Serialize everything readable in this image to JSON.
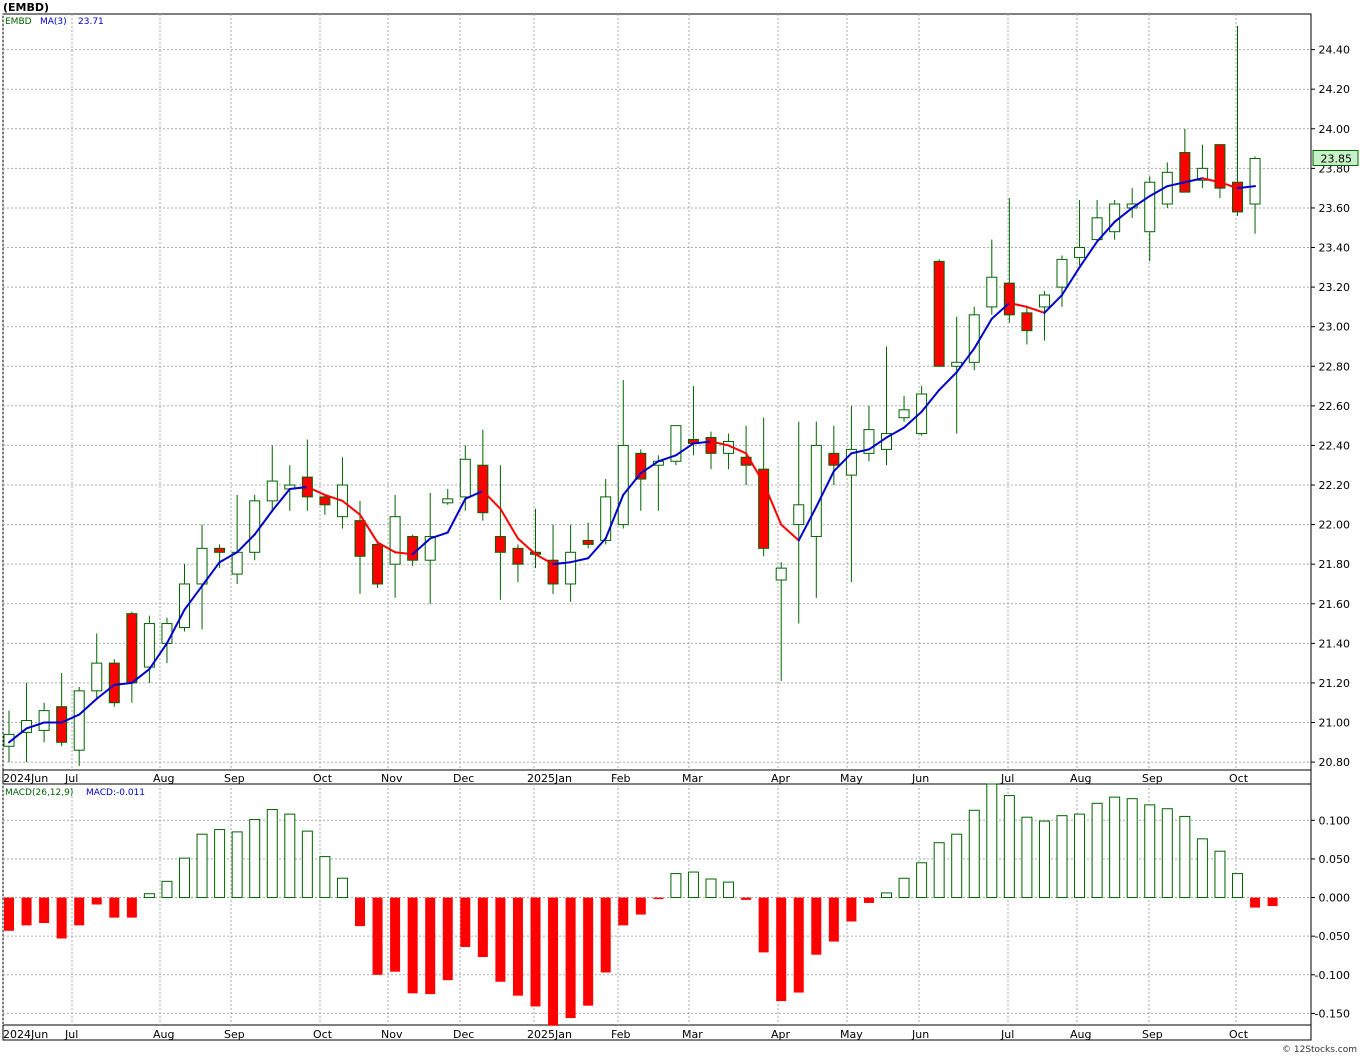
{
  "chart_data": [
    {
      "type": "candlestick",
      "title": "(EMBD)",
      "symbol_label": "EMBD",
      "ma_label": "MA(3)",
      "ma_value": "23.71",
      "last_price": "23.85",
      "ylim": [
        20.76,
        24.58
      ],
      "y_ticks": [
        "20.80",
        "21.00",
        "21.20",
        "21.40",
        "21.60",
        "21.80",
        "22.00",
        "22.20",
        "22.40",
        "22.60",
        "22.80",
        "23.00",
        "23.20",
        "23.40",
        "23.60",
        "23.80",
        "24.00",
        "24.20",
        "24.40"
      ],
      "x_ticks": [
        "2024Jun",
        "Jul",
        "Aug",
        "Sep",
        "Oct",
        "Nov",
        "Dec",
        "2025Jan",
        "Feb",
        "Mar",
        "Apr",
        "May",
        "Jun",
        "Jul",
        "Aug",
        "Sep",
        "Oct"
      ],
      "grid": true,
      "colors": {
        "up_fill": "#ffffff",
        "up_line": "#006400",
        "down_fill": "#ff0000",
        "wick": "#006400",
        "ma_up": "#0000cc",
        "ma_down": "#ff0000",
        "last_bg": "#c8f0c8"
      },
      "candles": [
        [
          20.88,
          20.94,
          21.06,
          20.8
        ],
        [
          20.95,
          21.01,
          21.2,
          20.8
        ],
        [
          20.96,
          21.06,
          21.1,
          20.9
        ],
        [
          21.08,
          20.9,
          21.25,
          20.88
        ],
        [
          20.86,
          21.16,
          21.18,
          20.78
        ],
        [
          21.16,
          21.3,
          21.45,
          21.12
        ],
        [
          21.3,
          21.1,
          21.32,
          21.08
        ],
        [
          21.55,
          21.2,
          21.56,
          21.1
        ],
        [
          21.28,
          21.5,
          21.54,
          21.2
        ],
        [
          21.4,
          21.5,
          21.53,
          21.3
        ],
        [
          21.48,
          21.7,
          21.8,
          21.46
        ],
        [
          21.7,
          21.88,
          22.0,
          21.47
        ],
        [
          21.88,
          21.86,
          21.9,
          21.78
        ],
        [
          21.75,
          21.86,
          22.15,
          21.7
        ],
        [
          21.86,
          22.12,
          22.15,
          21.82
        ],
        [
          22.12,
          22.22,
          22.4,
          22.07
        ],
        [
          22.18,
          22.2,
          22.3,
          22.07
        ],
        [
          22.24,
          22.14,
          22.43,
          22.07
        ],
        [
          22.14,
          22.1,
          22.15,
          22.05
        ],
        [
          22.04,
          22.2,
          22.34,
          21.98
        ],
        [
          22.02,
          21.84,
          22.12,
          21.65
        ],
        [
          21.9,
          21.7,
          21.92,
          21.68
        ],
        [
          21.8,
          22.04,
          22.15,
          21.63
        ],
        [
          21.94,
          21.82,
          21.95,
          21.79
        ],
        [
          21.82,
          21.94,
          22.16,
          21.6
        ],
        [
          22.11,
          22.13,
          22.18,
          22.1
        ],
        [
          22.14,
          22.33,
          22.4,
          22.07
        ],
        [
          22.3,
          22.06,
          22.48,
          22.02
        ],
        [
          21.94,
          21.86,
          22.3,
          21.62
        ],
        [
          21.88,
          21.8,
          21.9,
          21.71
        ],
        [
          21.86,
          21.85,
          22.08,
          21.78
        ],
        [
          21.82,
          21.7,
          22.0,
          21.65
        ],
        [
          21.7,
          21.86,
          22.0,
          21.61
        ],
        [
          21.92,
          21.9,
          22.01,
          21.88
        ],
        [
          21.92,
          22.14,
          22.23,
          21.9
        ],
        [
          22.0,
          22.4,
          22.73,
          21.98
        ],
        [
          22.36,
          22.23,
          22.38,
          22.07
        ],
        [
          22.3,
          22.32,
          22.35,
          22.07
        ],
        [
          22.32,
          22.5,
          22.5,
          22.3
        ],
        [
          22.43,
          22.41,
          22.7,
          22.35
        ],
        [
          22.44,
          22.36,
          22.47,
          22.28
        ],
        [
          22.36,
          22.42,
          22.46,
          22.28
        ],
        [
          22.34,
          22.3,
          22.5,
          22.2
        ],
        [
          22.28,
          21.88,
          22.54,
          21.84
        ],
        [
          21.72,
          21.78,
          21.81,
          21.21
        ],
        [
          22.0,
          22.1,
          22.52,
          21.5
        ],
        [
          21.94,
          22.4,
          22.52,
          21.63
        ],
        [
          22.36,
          22.3,
          22.5,
          22.2
        ],
        [
          22.25,
          22.38,
          22.6,
          21.71
        ],
        [
          22.36,
          22.48,
          22.6,
          22.32
        ],
        [
          22.38,
          22.46,
          22.9,
          22.3
        ],
        [
          22.54,
          22.58,
          22.65,
          22.52
        ],
        [
          22.46,
          22.66,
          22.7,
          22.45
        ],
        [
          23.33,
          22.8,
          23.34,
          22.8
        ],
        [
          22.8,
          22.82,
          23.05,
          22.46
        ],
        [
          22.82,
          23.06,
          23.1,
          22.78
        ],
        [
          23.1,
          23.25,
          23.44,
          23.06
        ],
        [
          23.22,
          23.06,
          23.65,
          23.02
        ],
        [
          23.07,
          22.98,
          23.1,
          22.91
        ],
        [
          23.1,
          23.16,
          23.18,
          22.93
        ],
        [
          23.2,
          23.34,
          23.36,
          23.1
        ],
        [
          23.35,
          23.4,
          23.64,
          23.31
        ],
        [
          23.44,
          23.55,
          23.64,
          23.43
        ],
        [
          23.48,
          23.62,
          23.64,
          23.44
        ],
        [
          23.6,
          23.62,
          23.7,
          23.55
        ],
        [
          23.48,
          23.73,
          23.76,
          23.33
        ],
        [
          23.62,
          23.78,
          23.83,
          23.6
        ],
        [
          23.88,
          23.68,
          24.0,
          23.68
        ],
        [
          23.74,
          23.8,
          23.92,
          23.7
        ],
        [
          23.92,
          23.7,
          23.92,
          23.65
        ],
        [
          23.73,
          23.58,
          24.52,
          23.56
        ],
        [
          23.62,
          23.85,
          23.86,
          23.47
        ]
      ],
      "ma": [
        20.9,
        20.97,
        21.0,
        21.0,
        21.04,
        21.12,
        21.19,
        21.2,
        21.27,
        21.4,
        21.57,
        21.69,
        21.81,
        21.86,
        21.95,
        22.07,
        22.18,
        22.19,
        22.15,
        22.12,
        22.05,
        21.91,
        21.86,
        21.85,
        21.93,
        21.96,
        22.13,
        22.17,
        22.08,
        21.93,
        21.85,
        21.8,
        21.81,
        21.83,
        21.93,
        22.15,
        22.26,
        22.32,
        22.35,
        22.41,
        22.42,
        22.4,
        22.36,
        22.21,
        22.0,
        21.92,
        22.09,
        22.27,
        22.36,
        22.38,
        22.44,
        22.49,
        22.57,
        22.68,
        22.77,
        22.89,
        23.04,
        23.12,
        23.1,
        23.07,
        23.16,
        23.3,
        23.43,
        23.53,
        23.6,
        23.66,
        23.71,
        23.73,
        23.75,
        23.73,
        23.7,
        23.71
      ]
    },
    {
      "type": "bar",
      "title": "MACD(26,12,9)",
      "value_label": "MACD:-0.011",
      "ylim": [
        -0.165,
        0.147
      ],
      "y_ticks": [
        "0.100",
        "0.050",
        "0.000",
        "-0.050",
        "-0.100",
        "-0.150"
      ],
      "x_ticks": [
        "2024Jun",
        "Jul",
        "Aug",
        "Sep",
        "Oct",
        "Nov",
        "Dec",
        "2025Jan",
        "Feb",
        "Mar",
        "Apr",
        "May",
        "Jun",
        "Jul",
        "Aug",
        "Sep",
        "Oct"
      ],
      "colors": {
        "positive_line": "#006400",
        "negative_fill": "#ff0000"
      },
      "values": [
        -0.043,
        -0.036,
        -0.033,
        -0.053,
        -0.036,
        -0.009,
        -0.026,
        -0.026,
        0.005,
        0.021,
        0.051,
        0.082,
        0.088,
        0.085,
        0.101,
        0.114,
        0.108,
        0.086,
        0.053,
        0.025,
        -0.037,
        -0.1,
        -0.096,
        -0.124,
        -0.125,
        -0.107,
        -0.064,
        -0.077,
        -0.109,
        -0.127,
        -0.141,
        -0.166,
        -0.156,
        -0.14,
        -0.097,
        -0.036,
        -0.022,
        -0.002,
        0.031,
        0.033,
        0.024,
        0.02,
        -0.003,
        -0.071,
        -0.134,
        -0.123,
        -0.074,
        -0.057,
        -0.031,
        -0.007,
        0.006,
        0.025,
        0.045,
        0.071,
        0.082,
        0.113,
        0.147,
        0.132,
        0.104,
        0.099,
        0.106,
        0.108,
        0.122,
        0.13,
        0.128,
        0.12,
        0.115,
        0.105,
        0.076,
        0.06,
        0.031,
        -0.013,
        -0.011
      ]
    }
  ],
  "watermark": "© 12Stocks.com"
}
